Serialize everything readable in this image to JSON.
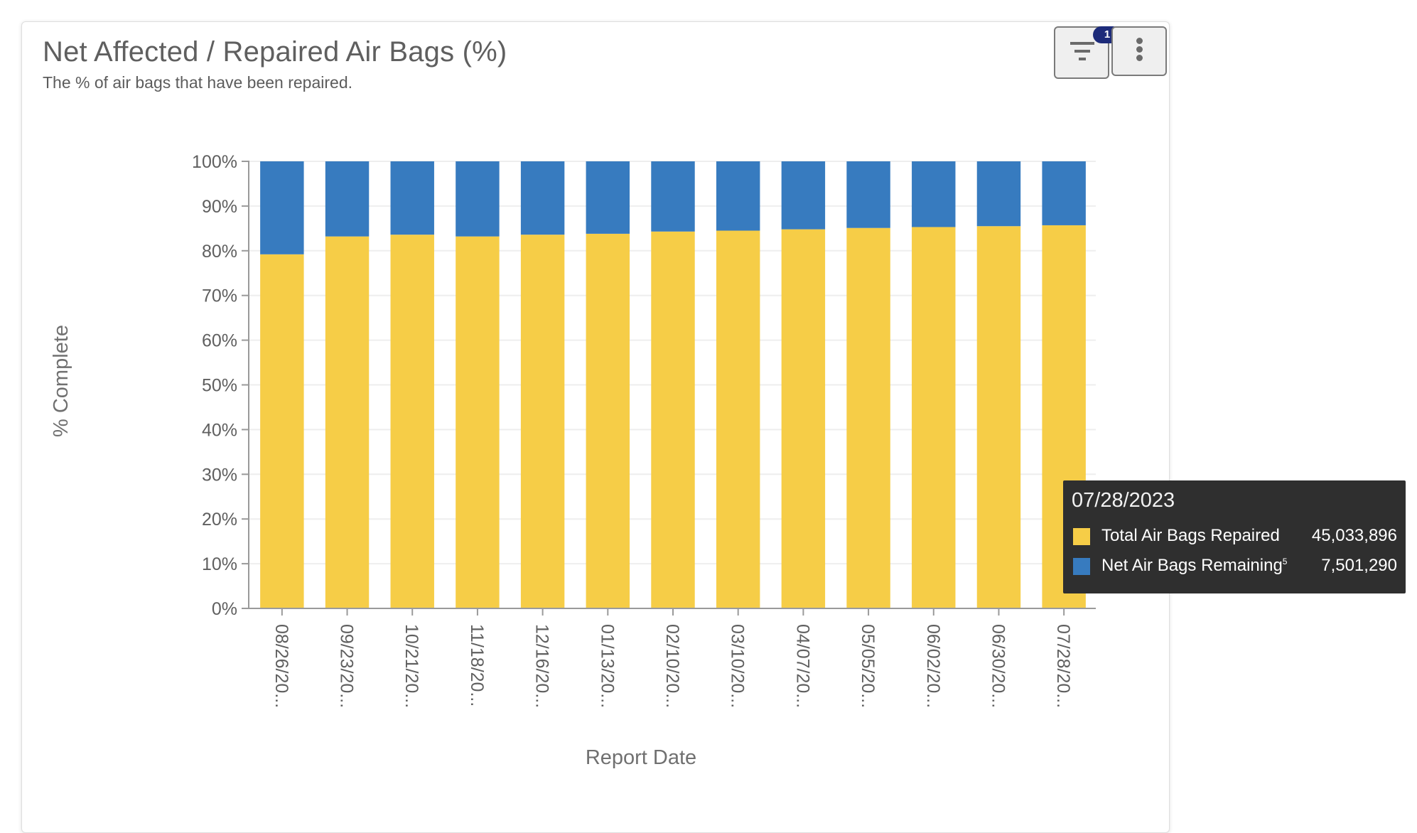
{
  "card": {
    "title": "Net Affected / Repaired Air Bags (%)",
    "subtitle": "The % of air bags that have been repaired.",
    "filter_button": {
      "icon": "filter-icon",
      "badge_count": "1"
    },
    "more_button": {
      "icon": "more-vertical-icon"
    }
  },
  "colors": {
    "repaired": "#f6cd47",
    "remaining": "#377bbf",
    "badge": "#1d2b7a",
    "tooltip_bg": "#2f2f2f"
  },
  "tooltip": {
    "date": "07/28/2023",
    "rows": [
      {
        "label": "Total Air Bags Repaired",
        "superscript": "",
        "value": "45,033,896",
        "series": "repaired"
      },
      {
        "label": "Net Air Bags Remaining",
        "superscript": "5",
        "value": "7,501,290",
        "series": "remaining"
      }
    ]
  },
  "chart_data": {
    "type": "bar",
    "stacked": true,
    "normalized": true,
    "title": "Net Affected / Repaired Air Bags (%)",
    "subtitle": "The % of air bags that have been repaired.",
    "xlabel": "Report Date",
    "ylabel": "% Complete",
    "ylim": [
      0,
      100
    ],
    "yticks": [
      "0%",
      "10%",
      "20%",
      "30%",
      "40%",
      "50%",
      "60%",
      "70%",
      "80%",
      "90%",
      "100%"
    ],
    "grid": true,
    "categories": [
      "08/26/20...",
      "09/23/20...",
      "10/21/20...",
      "11/18/20...",
      "12/16/20...",
      "01/13/20...",
      "02/10/20...",
      "03/10/20...",
      "04/07/20...",
      "05/05/20...",
      "06/02/20...",
      "06/30/20...",
      "07/28/20..."
    ],
    "series": [
      {
        "name": "Total Air Bags Repaired",
        "color": "#f6cd47",
        "values": [
          79.2,
          83.2,
          83.6,
          83.2,
          83.6,
          83.8,
          84.3,
          84.5,
          84.8,
          85.1,
          85.3,
          85.5,
          85.7
        ]
      },
      {
        "name": "Net Air Bags Remaining",
        "color": "#377bbf",
        "values": [
          20.8,
          16.8,
          16.4,
          16.8,
          16.4,
          16.2,
          15.7,
          15.5,
          15.2,
          14.9,
          14.7,
          14.5,
          14.3
        ]
      }
    ]
  }
}
